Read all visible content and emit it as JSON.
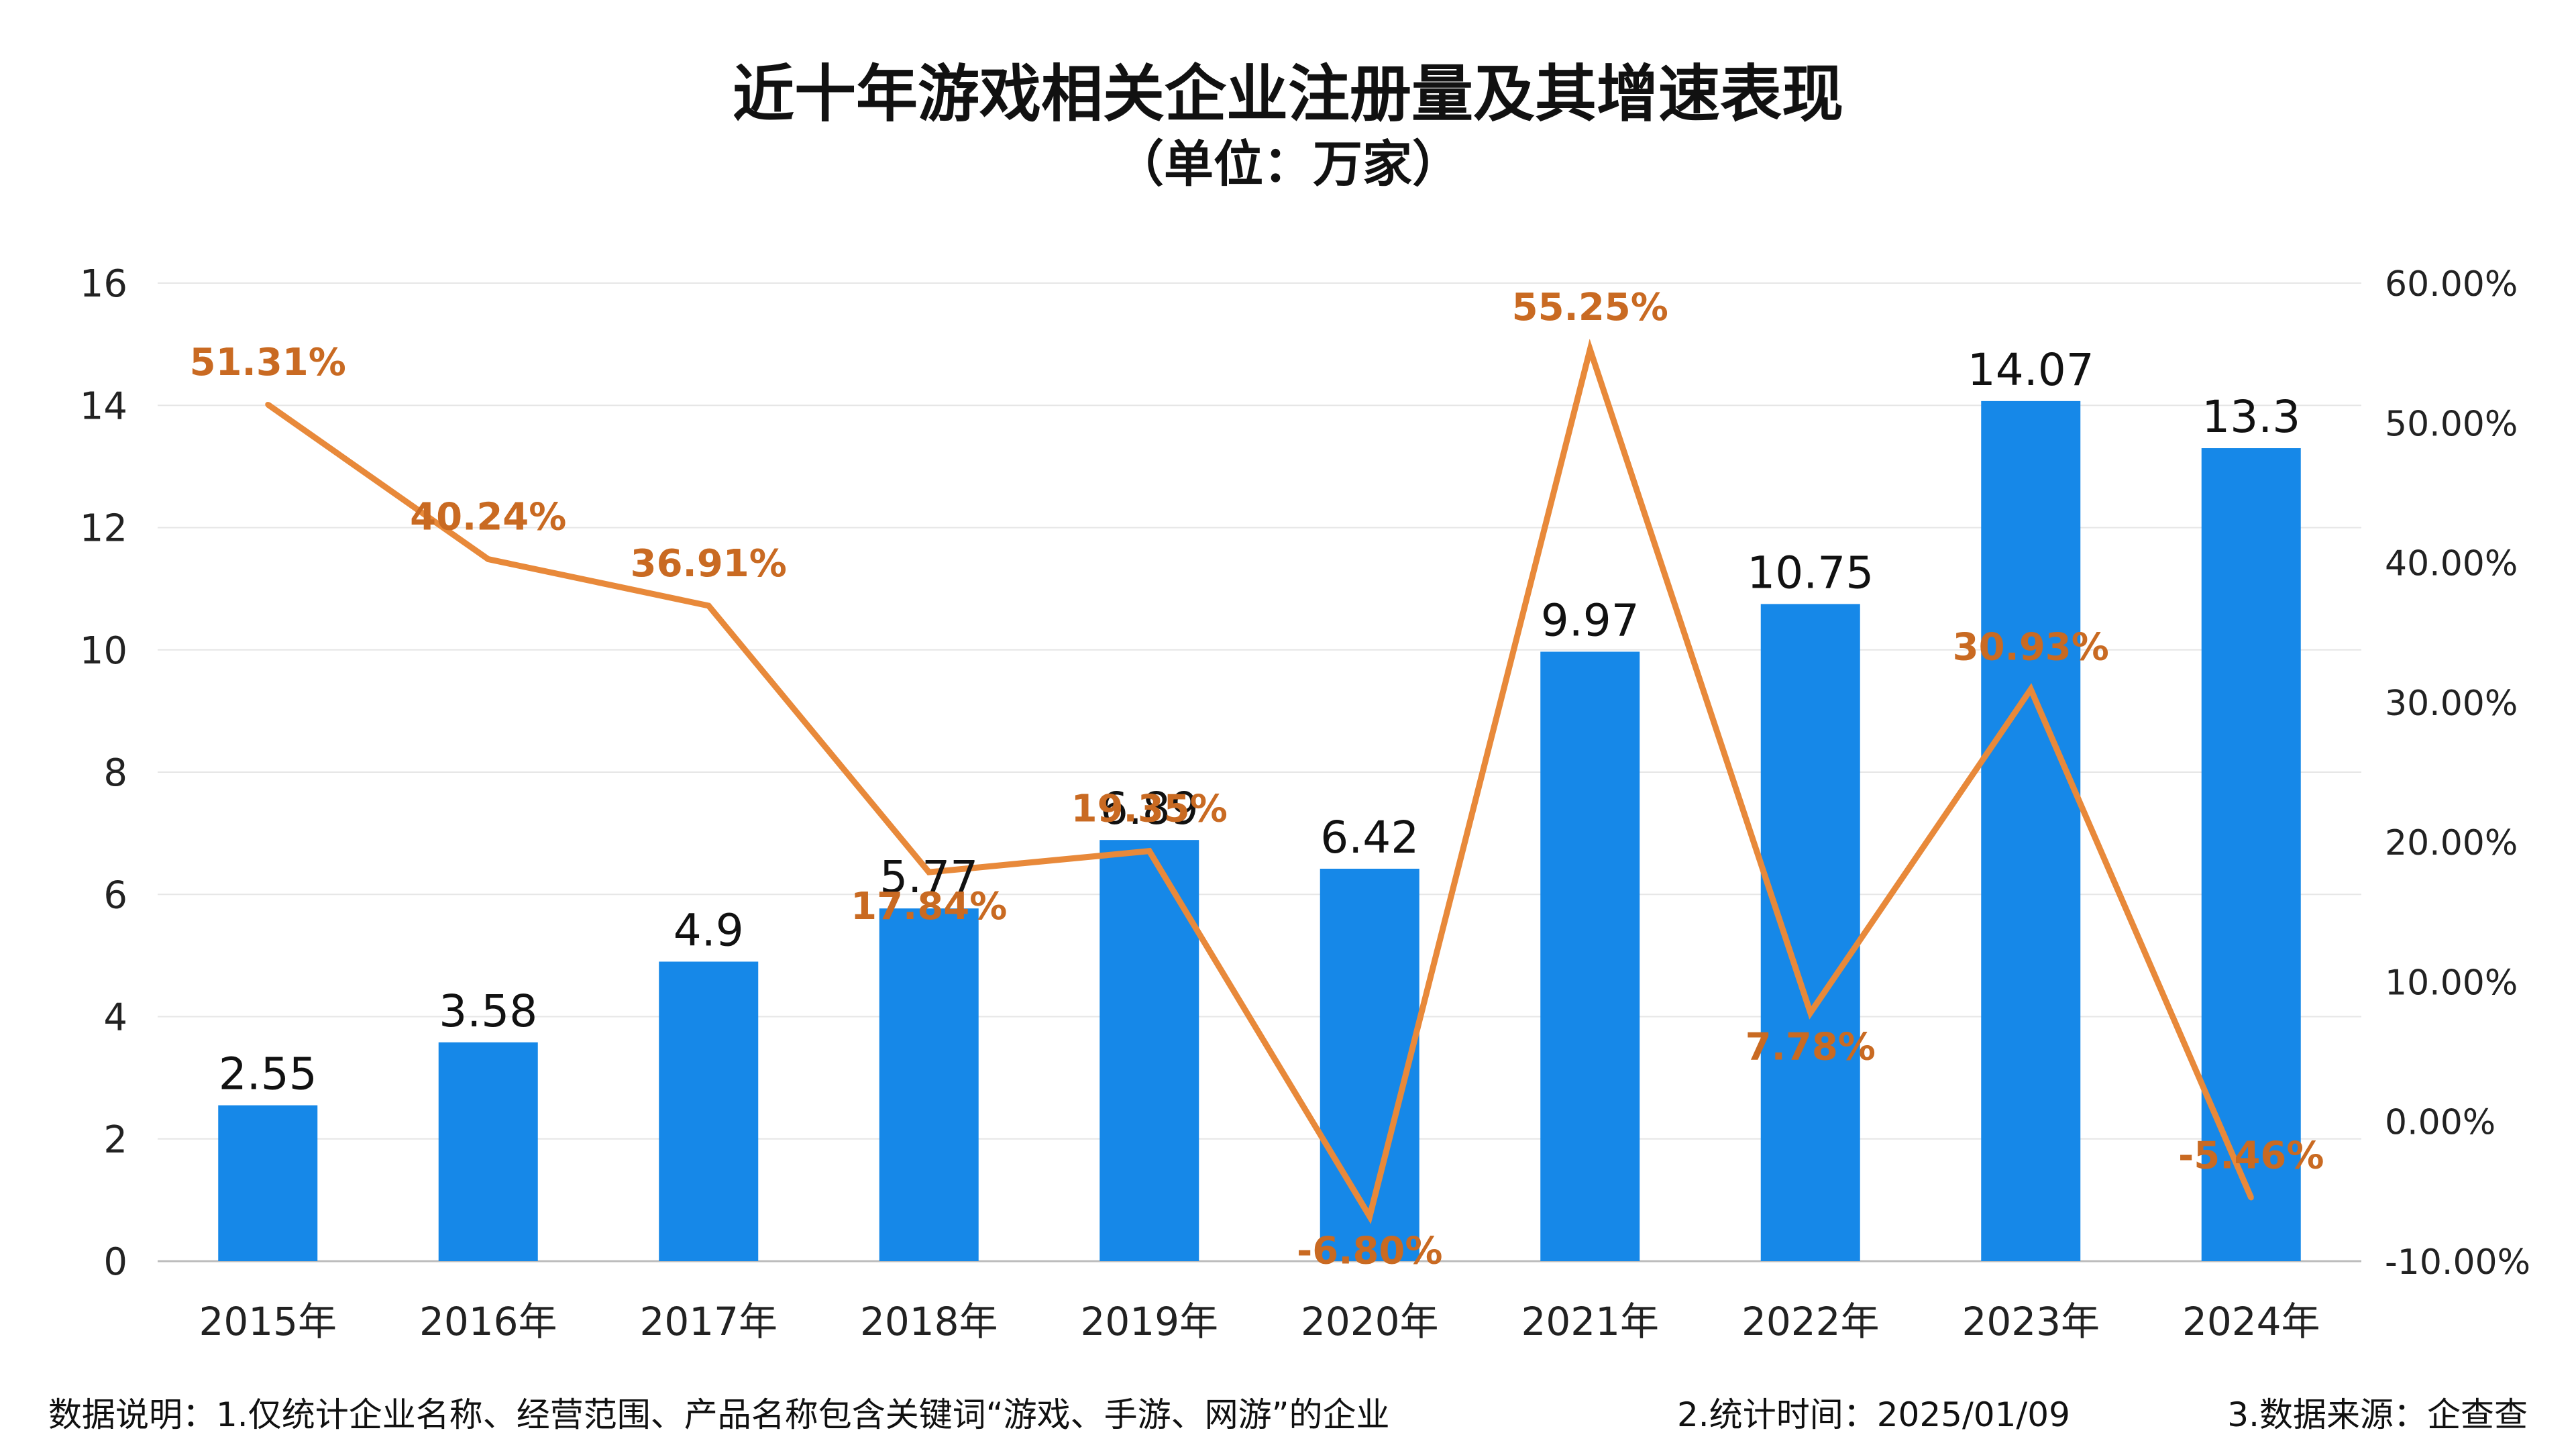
{
  "title": "近十年游戏相关企业注册量及其增速表现",
  "subtitle": "（单位：万家）",
  "chart_data": {
    "type": "bar",
    "categories": [
      "2015年",
      "2016年",
      "2017年",
      "2018年",
      "2019年",
      "2020年",
      "2021年",
      "2022年",
      "2023年",
      "2024年"
    ],
    "series": [
      {
        "type": "bar",
        "axis": "left",
        "color": "#1688E8",
        "values": [
          2.55,
          3.58,
          4.9,
          5.77,
          6.89,
          6.42,
          9.97,
          10.75,
          14.07,
          13.3
        ],
        "labels": [
          "2.55",
          "3.58",
          "4.9",
          "5.77",
          "6.89",
          "6.42",
          "9.97",
          "10.75",
          "14.07",
          "13.3"
        ]
      },
      {
        "type": "line",
        "axis": "right",
        "color": "#E8893A",
        "label_color": "#C96A22",
        "values": [
          51.31,
          40.24,
          36.91,
          17.84,
          19.35,
          -6.8,
          55.25,
          7.78,
          30.93,
          -5.46
        ],
        "labels": [
          "51.31%",
          "40.24%",
          "36.91%",
          "17.84%",
          "19.35%",
          "-6.80%",
          "55.25%",
          "7.78%",
          "30.93%",
          "-5.46%"
        ]
      }
    ],
    "y_left": {
      "min": 0,
      "max": 16,
      "ticks": [
        "0",
        "2",
        "4",
        "6",
        "8",
        "10",
        "12",
        "14",
        "16"
      ]
    },
    "y_right": {
      "min": -10,
      "max": 60,
      "ticks": [
        "-10.00%",
        "0.00%",
        "10.00%",
        "20.00%",
        "30.00%",
        "40.00%",
        "50.00%",
        "60.00%"
      ]
    },
    "grid": true,
    "legend": "none"
  },
  "footer": {
    "note": "数据说明：1.仅统计企业名称、经营范围、产品名称包含关键词“游戏、手游、网游”的企业",
    "time": "2.统计时间：2025/01/09",
    "source": "3.数据来源：企查查"
  }
}
